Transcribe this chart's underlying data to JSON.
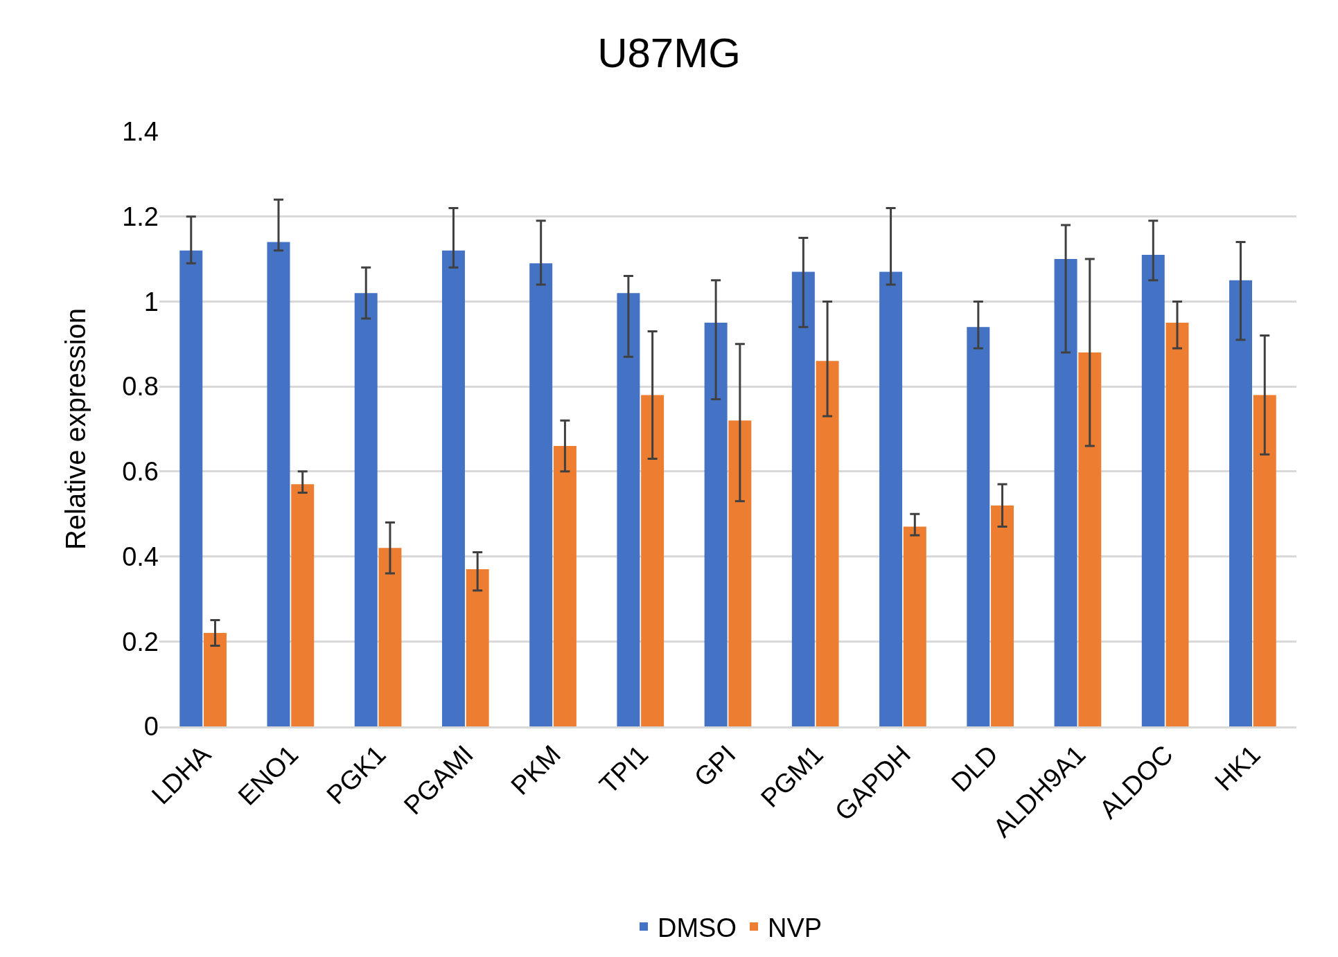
{
  "chart_data": {
    "type": "bar",
    "title": "U87MG",
    "ylabel": "Relative expression",
    "categories": [
      "LDHA",
      "ENO1",
      "PGK1",
      "PGAMI",
      "PKM",
      "TPI1",
      "GPI",
      "PGM1",
      "GAPDH",
      "DLD",
      "ALDH9A1",
      "ALDOC",
      "HK1"
    ],
    "series": [
      {
        "name": "DMSO",
        "color": "#4472c4",
        "values": [
          1.12,
          1.14,
          1.02,
          1.12,
          1.09,
          1.02,
          0.95,
          1.07,
          1.07,
          0.94,
          1.1,
          1.11,
          1.05
        ],
        "errors": [
          [
            1.09,
            1.2
          ],
          [
            1.12,
            1.24
          ],
          [
            0.96,
            1.08
          ],
          [
            1.08,
            1.22
          ],
          [
            1.04,
            1.19
          ],
          [
            0.87,
            1.06
          ],
          [
            0.77,
            1.05
          ],
          [
            0.94,
            1.15
          ],
          [
            1.04,
            1.22
          ],
          [
            0.89,
            1.0
          ],
          [
            0.88,
            1.18
          ],
          [
            1.05,
            1.19
          ],
          [
            0.91,
            1.14
          ]
        ]
      },
      {
        "name": "NVP",
        "color": "#ed7d31",
        "values": [
          0.22,
          0.57,
          0.42,
          0.37,
          0.66,
          0.78,
          0.72,
          0.86,
          0.47,
          0.52,
          0.88,
          0.95,
          0.78
        ],
        "errors": [
          [
            0.19,
            0.25
          ],
          [
            0.55,
            0.6
          ],
          [
            0.36,
            0.48
          ],
          [
            0.32,
            0.41
          ],
          [
            0.6,
            0.72
          ],
          [
            0.63,
            0.93
          ],
          [
            0.53,
            0.9
          ],
          [
            0.73,
            1.0
          ],
          [
            0.45,
            0.5
          ],
          [
            0.47,
            0.57
          ],
          [
            0.66,
            1.1
          ],
          [
            0.89,
            1.0
          ],
          [
            0.64,
            0.92
          ]
        ]
      }
    ],
    "ylim": [
      0,
      1.4
    ],
    "yticks": [
      0,
      0.2,
      0.4,
      0.6,
      0.8,
      1,
      1.2,
      1.4
    ],
    "grid": "y",
    "legend": "bottom"
  }
}
